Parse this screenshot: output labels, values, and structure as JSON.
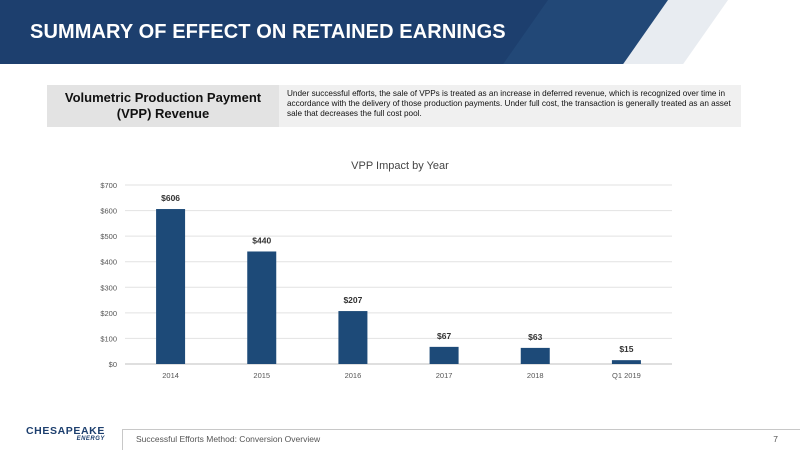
{
  "header": {
    "title": "SUMMARY OF EFFECT ON RETAINED EARNINGS"
  },
  "info": {
    "label": "Volumetric Production Payment (VPP) Revenue",
    "text": "Under successful efforts, the sale of VPPs is treated as an increase in deferred revenue, which is recognized over time in accordance with the delivery of those production payments. Under full cost, the transaction is generally treated as an asset sale that decreases the full cost pool."
  },
  "chart_data": {
    "type": "bar",
    "title": "VPP Impact by Year",
    "categories": [
      "2014",
      "2015",
      "2016",
      "2017",
      "2018",
      "Q1 2019"
    ],
    "values": [
      606,
      440,
      207,
      67,
      63,
      15
    ],
    "data_labels": [
      "$606",
      "$440",
      "$207",
      "$67",
      "$63",
      "$15"
    ],
    "ylim": [
      0,
      700
    ],
    "yticks": [
      0,
      100,
      200,
      300,
      400,
      500,
      600,
      700
    ],
    "ytick_labels": [
      "$0",
      "$100",
      "$200",
      "$300",
      "$400",
      "$500",
      "$600",
      "$700"
    ],
    "grid": true,
    "bar_color": "#1d4a78"
  },
  "footer": {
    "logo_main": "CHESAPEAKE",
    "logo_sub": "ENERGY",
    "text": "Successful Efforts Method: Conversion Overview",
    "page": "7"
  },
  "colors": {
    "brand": "#1d3f6e",
    "bar": "#1d4a78"
  }
}
